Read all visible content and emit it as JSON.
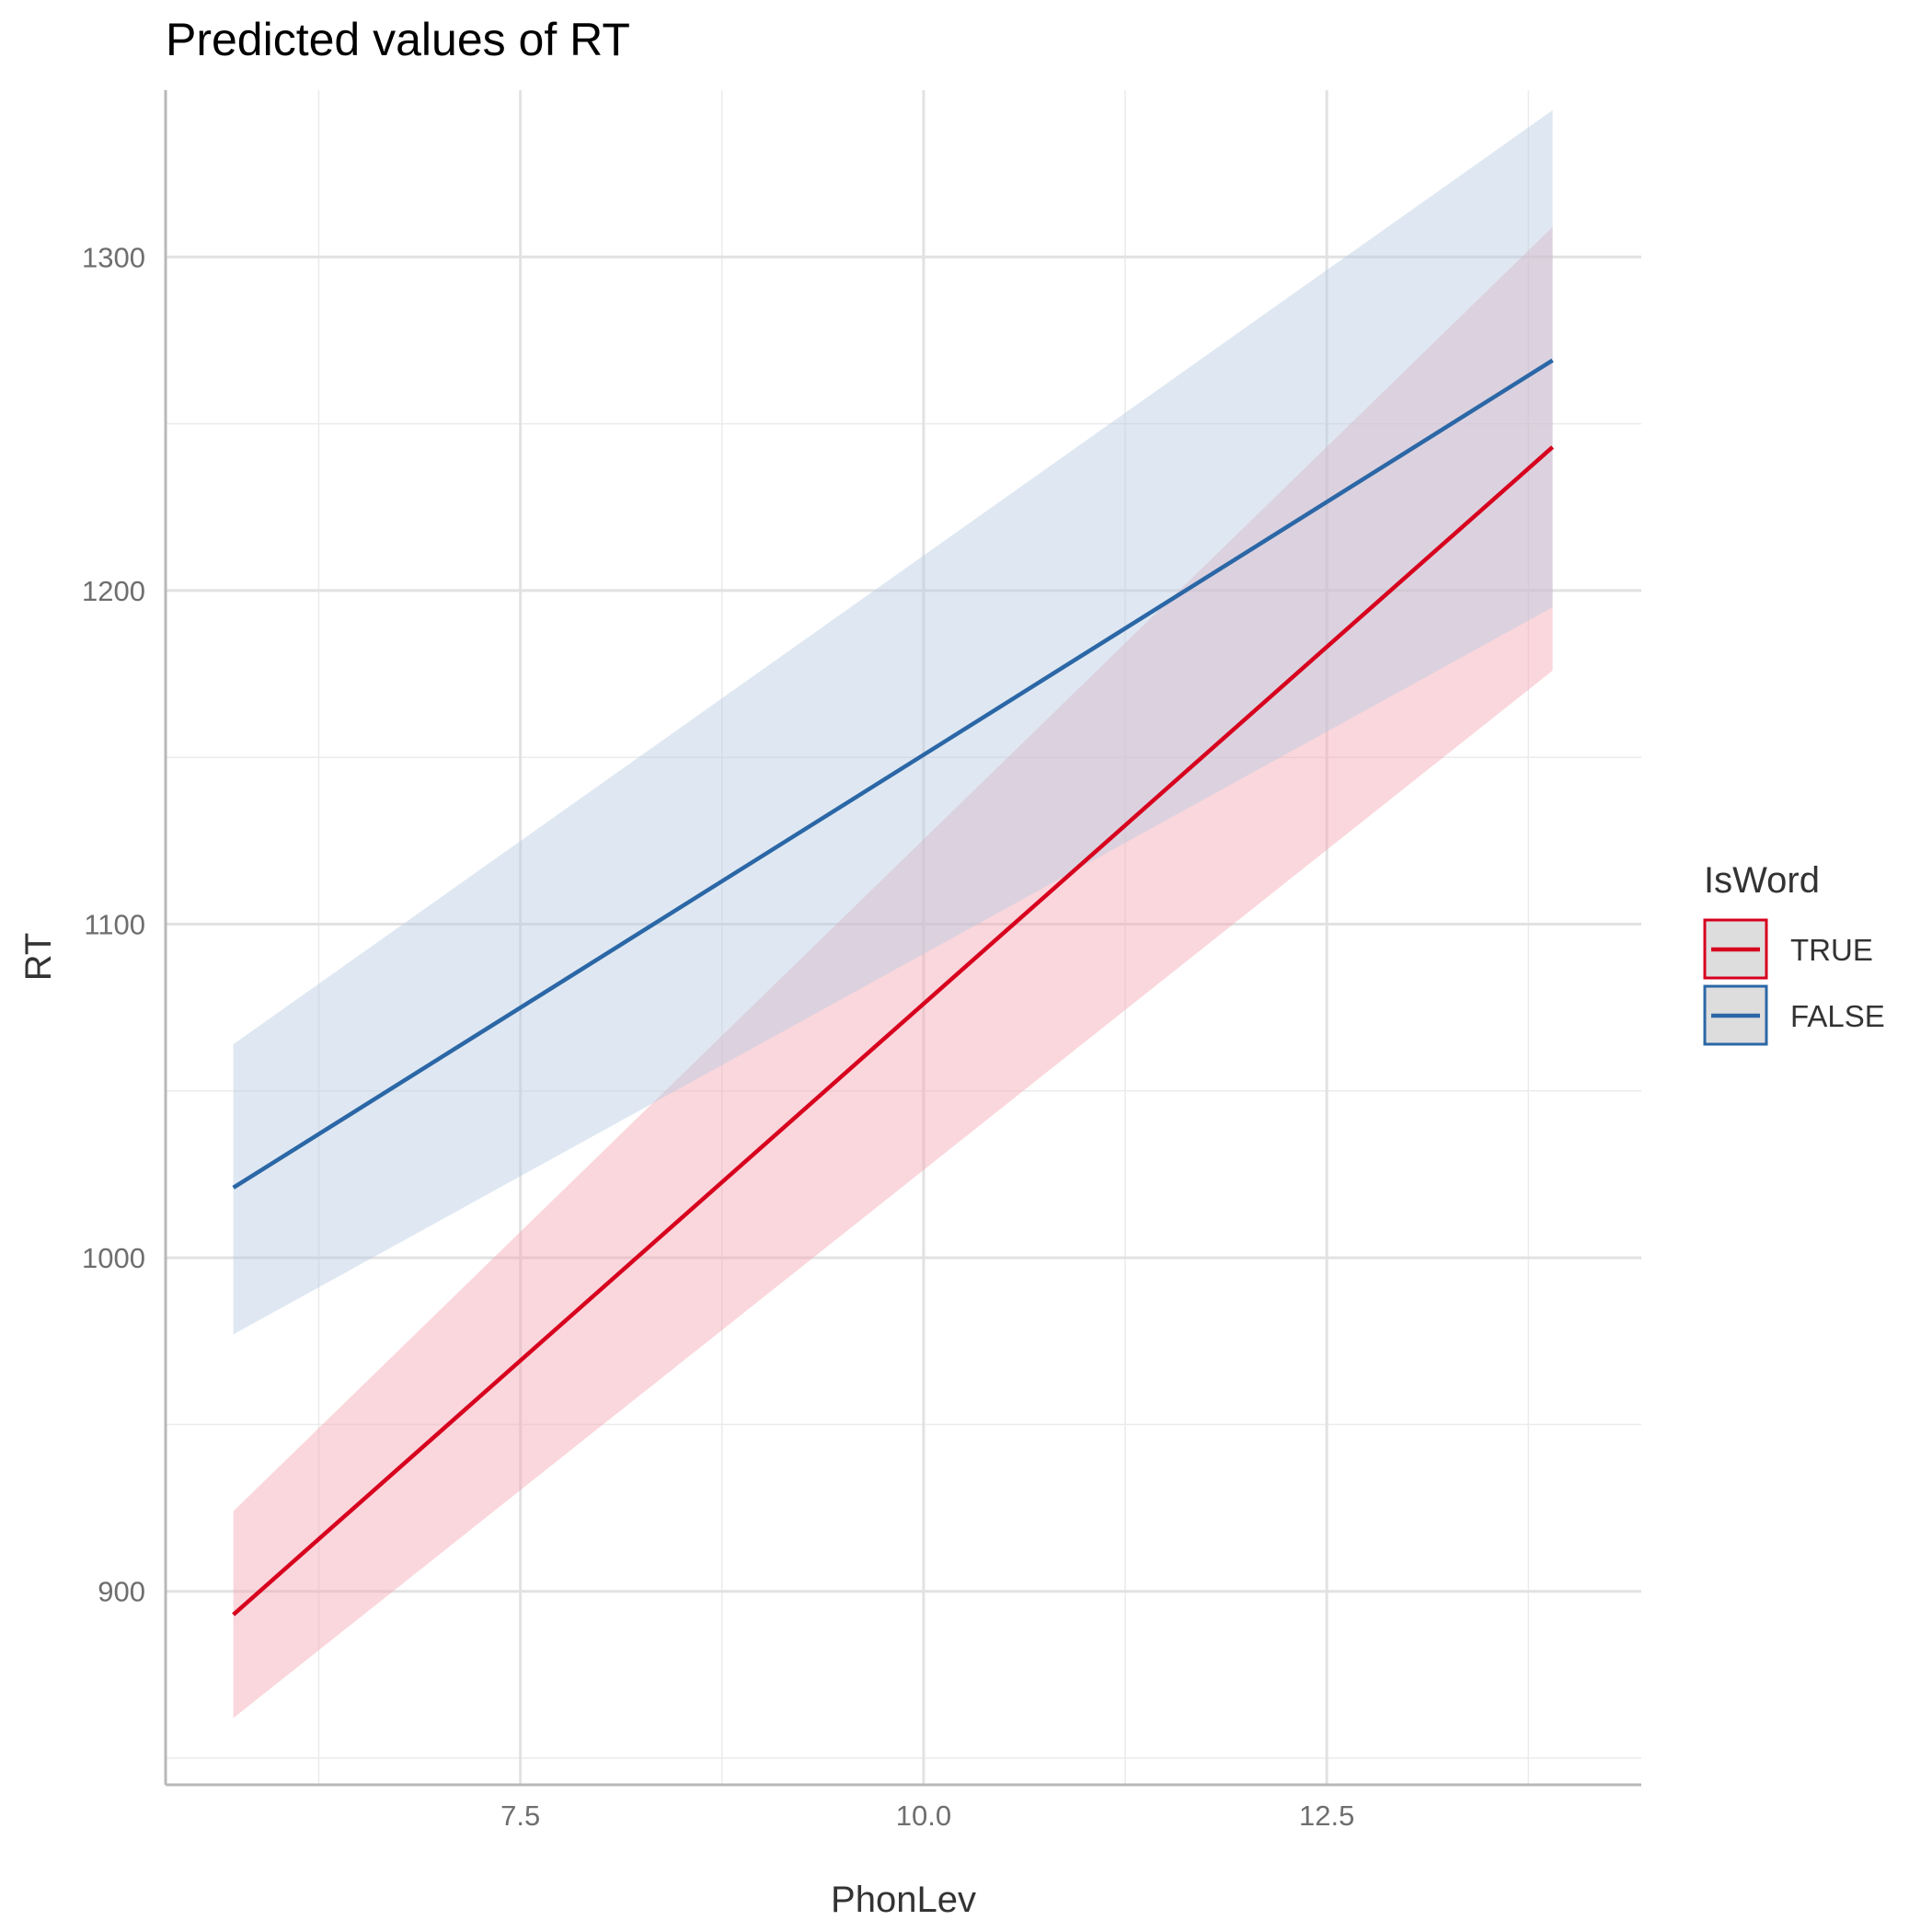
{
  "chart_data": {
    "type": "line",
    "title": "Predicted values of RT",
    "xlabel": "PhonLev",
    "ylabel": "RT",
    "xlim": [
      5.3,
      14.45
    ],
    "ylim": [
      842,
      1350
    ],
    "x_ticks": [
      7.5,
      10.0,
      12.5
    ],
    "x_tick_labels": [
      "7.5",
      "10.0",
      "12.5"
    ],
    "x_minor_ticks": [
      6.25,
      8.75,
      11.25,
      13.75
    ],
    "y_ticks": [
      900,
      1000,
      1100,
      1200,
      1300
    ],
    "y_tick_labels": [
      "900",
      "1000",
      "1100",
      "1200",
      "1300"
    ],
    "y_minor_ticks": [
      850,
      950,
      1050,
      1150,
      1250
    ],
    "grid": true,
    "legend": {
      "title": "IsWord",
      "position": "right"
    },
    "series": [
      {
        "name": "TRUE",
        "color": "#d7001e",
        "ribbon_color": "#f4a7b2",
        "x": [
          5.72,
          13.9
        ],
        "y": [
          893,
          1243
        ],
        "lower": [
          862,
          1176
        ],
        "upper": [
          924,
          1309
        ]
      },
      {
        "name": "FALSE",
        "color": "#2b67a6",
        "ribbon_color": "#b9cbe3",
        "x": [
          5.72,
          13.9
        ],
        "y": [
          1021,
          1269
        ],
        "lower": [
          977,
          1195
        ],
        "upper": [
          1064,
          1344
        ]
      }
    ]
  }
}
